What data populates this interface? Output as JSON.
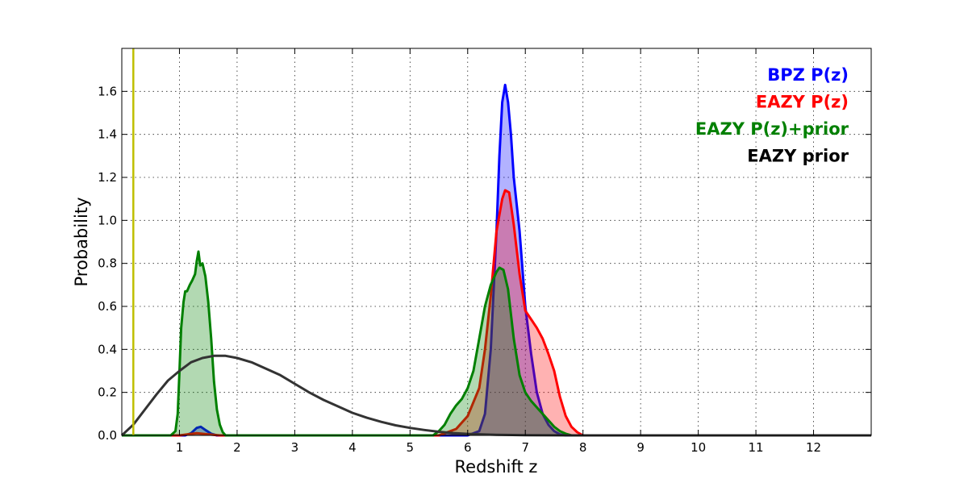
{
  "chart_data": {
    "type": "area",
    "title": "",
    "xlabel": "Redshift z",
    "ylabel": "Probability",
    "xlim": [
      0,
      13
    ],
    "ylim": [
      0,
      1.8
    ],
    "x_ticks": [
      1,
      2,
      3,
      4,
      5,
      6,
      7,
      8,
      9,
      10,
      11,
      12
    ],
    "x_tick_labels": [
      "1",
      "2",
      "3",
      "4",
      "5",
      "6",
      "7",
      "8",
      "9",
      "10",
      "11",
      "12"
    ],
    "y_ticks": [
      0,
      0.2,
      0.4,
      0.6,
      0.8,
      1.0,
      1.2,
      1.4,
      1.6
    ],
    "y_tick_labels": [
      "0.0",
      "0.2",
      "0.4",
      "0.6",
      "0.8",
      "1.0",
      "1.2",
      "1.4",
      "1.6"
    ],
    "grid": true,
    "legend_position": "top-right",
    "vertical_line": {
      "x": 0.2,
      "color": "#bfbf00"
    },
    "series": [
      {
        "name": "BPZ P(z)",
        "color": "#0000ff",
        "filled": true,
        "points": [
          [
            0,
            0
          ],
          [
            1.1,
            0
          ],
          [
            1.2,
            0.01
          ],
          [
            1.3,
            0.035
          ],
          [
            1.37,
            0.04
          ],
          [
            1.45,
            0.025
          ],
          [
            1.55,
            0.008
          ],
          [
            1.65,
            0
          ],
          [
            6.0,
            0
          ],
          [
            6.2,
            0.02
          ],
          [
            6.3,
            0.1
          ],
          [
            6.4,
            0.4
          ],
          [
            6.5,
            0.95
          ],
          [
            6.55,
            1.3
          ],
          [
            6.6,
            1.55
          ],
          [
            6.65,
            1.63
          ],
          [
            6.7,
            1.55
          ],
          [
            6.75,
            1.4
          ],
          [
            6.8,
            1.2
          ],
          [
            6.9,
            0.95
          ],
          [
            7.0,
            0.6
          ],
          [
            7.1,
            0.38
          ],
          [
            7.2,
            0.2
          ],
          [
            7.3,
            0.1
          ],
          [
            7.4,
            0.05
          ],
          [
            7.5,
            0.02
          ],
          [
            7.6,
            0.005
          ],
          [
            7.7,
            0
          ],
          [
            13,
            0
          ]
        ]
      },
      {
        "name": "EAZY P(z)",
        "color": "#ff0000",
        "filled": true,
        "points": [
          [
            0,
            0
          ],
          [
            1.0,
            0
          ],
          [
            1.3,
            0.01
          ],
          [
            1.5,
            0.005
          ],
          [
            1.7,
            0
          ],
          [
            5.5,
            0
          ],
          [
            5.8,
            0.03
          ],
          [
            6.0,
            0.09
          ],
          [
            6.2,
            0.22
          ],
          [
            6.3,
            0.4
          ],
          [
            6.4,
            0.65
          ],
          [
            6.5,
            0.95
          ],
          [
            6.6,
            1.1
          ],
          [
            6.65,
            1.14
          ],
          [
            6.72,
            1.13
          ],
          [
            6.8,
            0.98
          ],
          [
            6.9,
            0.75
          ],
          [
            7.0,
            0.58
          ],
          [
            7.1,
            0.54
          ],
          [
            7.2,
            0.5
          ],
          [
            7.3,
            0.45
          ],
          [
            7.4,
            0.38
          ],
          [
            7.5,
            0.3
          ],
          [
            7.6,
            0.18
          ],
          [
            7.7,
            0.09
          ],
          [
            7.8,
            0.04
          ],
          [
            7.9,
            0.015
          ],
          [
            8.0,
            0
          ],
          [
            13,
            0
          ]
        ]
      },
      {
        "name": "EAZY P(z)+prior",
        "color": "#008000",
        "filled": true,
        "points": [
          [
            0,
            0
          ],
          [
            0.85,
            0
          ],
          [
            0.93,
            0.02
          ],
          [
            0.97,
            0.1
          ],
          [
            1.0,
            0.3
          ],
          [
            1.03,
            0.5
          ],
          [
            1.07,
            0.62
          ],
          [
            1.1,
            0.67
          ],
          [
            1.13,
            0.67
          ],
          [
            1.18,
            0.7
          ],
          [
            1.22,
            0.72
          ],
          [
            1.27,
            0.75
          ],
          [
            1.3,
            0.81
          ],
          [
            1.33,
            0.855
          ],
          [
            1.36,
            0.79
          ],
          [
            1.4,
            0.8
          ],
          [
            1.45,
            0.74
          ],
          [
            1.5,
            0.62
          ],
          [
            1.55,
            0.45
          ],
          [
            1.6,
            0.25
          ],
          [
            1.65,
            0.12
          ],
          [
            1.7,
            0.05
          ],
          [
            1.75,
            0.015
          ],
          [
            1.8,
            0
          ],
          [
            5.4,
            0
          ],
          [
            5.5,
            0.02
          ],
          [
            5.6,
            0.05
          ],
          [
            5.7,
            0.1
          ],
          [
            5.8,
            0.14
          ],
          [
            5.9,
            0.17
          ],
          [
            6.0,
            0.22
          ],
          [
            6.1,
            0.3
          ],
          [
            6.2,
            0.45
          ],
          [
            6.3,
            0.6
          ],
          [
            6.4,
            0.7
          ],
          [
            6.5,
            0.76
          ],
          [
            6.55,
            0.78
          ],
          [
            6.62,
            0.77
          ],
          [
            6.7,
            0.68
          ],
          [
            6.8,
            0.45
          ],
          [
            6.9,
            0.28
          ],
          [
            7.0,
            0.2
          ],
          [
            7.1,
            0.16
          ],
          [
            7.2,
            0.13
          ],
          [
            7.3,
            0.1
          ],
          [
            7.4,
            0.07
          ],
          [
            7.5,
            0.04
          ],
          [
            7.6,
            0.02
          ],
          [
            7.7,
            0.008
          ],
          [
            7.8,
            0
          ],
          [
            13,
            0
          ]
        ]
      },
      {
        "name": "EAZY prior",
        "color": "#333333",
        "filled": false,
        "points": [
          [
            0,
            0
          ],
          [
            0.2,
            0.05
          ],
          [
            0.4,
            0.12
          ],
          [
            0.6,
            0.19
          ],
          [
            0.8,
            0.255
          ],
          [
            1.0,
            0.3
          ],
          [
            1.2,
            0.34
          ],
          [
            1.4,
            0.36
          ],
          [
            1.6,
            0.37
          ],
          [
            1.8,
            0.37
          ],
          [
            2.0,
            0.36
          ],
          [
            2.25,
            0.34
          ],
          [
            2.5,
            0.31
          ],
          [
            2.75,
            0.28
          ],
          [
            3.0,
            0.24
          ],
          [
            3.25,
            0.2
          ],
          [
            3.5,
            0.165
          ],
          [
            3.75,
            0.135
          ],
          [
            4.0,
            0.105
          ],
          [
            4.25,
            0.082
          ],
          [
            4.5,
            0.063
          ],
          [
            4.75,
            0.047
          ],
          [
            5.0,
            0.035
          ],
          [
            5.25,
            0.025
          ],
          [
            5.5,
            0.017
          ],
          [
            5.75,
            0.011
          ],
          [
            6.0,
            0.007
          ],
          [
            6.5,
            0.003
          ],
          [
            7.0,
            0.001
          ],
          [
            8.0,
            0
          ],
          [
            13,
            0
          ]
        ]
      }
    ]
  }
}
